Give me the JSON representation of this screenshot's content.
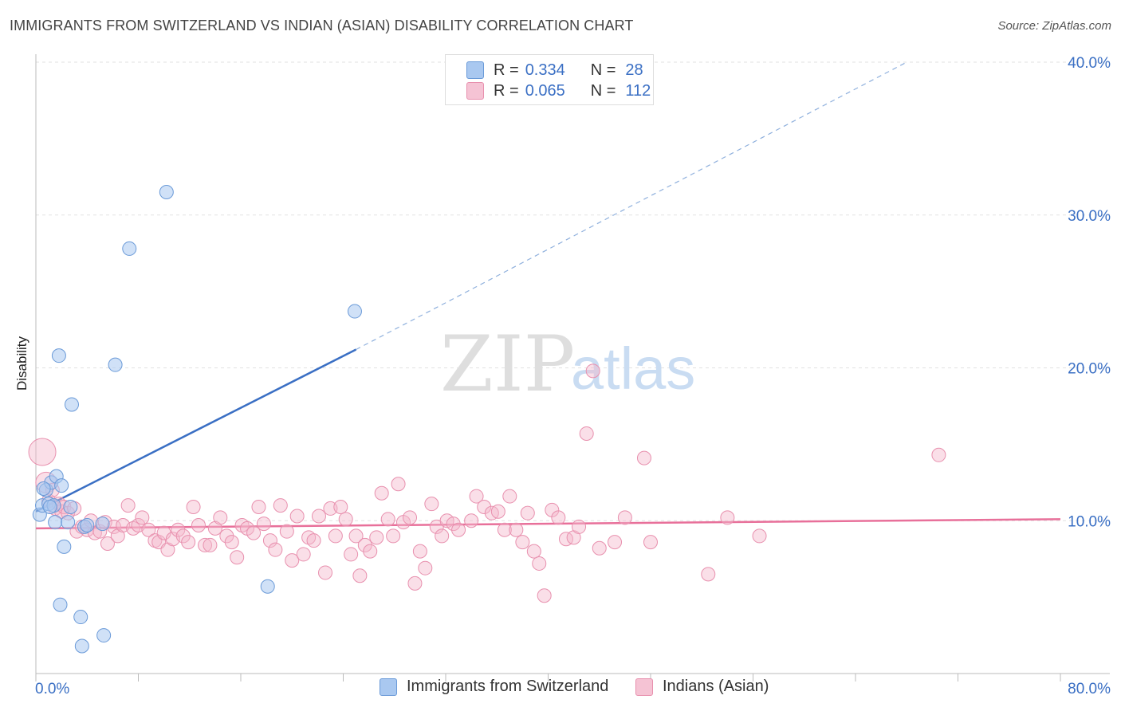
{
  "header": {
    "title": "IMMIGRANTS FROM SWITZERLAND VS INDIAN (ASIAN) DISABILITY CORRELATION CHART",
    "source": "Source: ZipAtlas.com"
  },
  "legend": {
    "rows": [
      {
        "r_label": "R =",
        "r_value": "0.334",
        "n_label": "N =",
        "n_value": "28"
      },
      {
        "r_label": "R =",
        "r_value": "0.065",
        "n_label": "N =",
        "n_value": "112"
      }
    ]
  },
  "watermark": {
    "zip": "ZIP",
    "atlas": "atlas"
  },
  "colors": {
    "blue": "#3a6fc4",
    "blue_fill": "#a9c8f0",
    "pink": "#e8709a",
    "pink_fill": "#f5b8cc"
  },
  "chart_data": {
    "type": "scatter",
    "title": "IMMIGRANTS FROM SWITZERLAND VS INDIAN (ASIAN) DISABILITY CORRELATION CHART",
    "xlabel": "",
    "ylabel": "Disability",
    "xlim": [
      0,
      80
    ],
    "ylim": [
      0,
      40
    ],
    "x_tick_labels": [
      "0.0%",
      "80.0%"
    ],
    "y_ticks": [
      10,
      20,
      30,
      40
    ],
    "y_tick_labels": [
      "10.0%",
      "20.0%",
      "30.0%",
      "40.0%"
    ],
    "grid": "horizontal dashed",
    "legend_placement": "top-center",
    "series": [
      {
        "name": "Immigrants from Switzerland",
        "color": "#3a6fc4",
        "trend": {
          "x0": 0,
          "y0": 10.6,
          "x1": 25,
          "y1": 21.2,
          "dashed_to_x": 68,
          "dashed_to_y": 40
        },
        "points": [
          [
            0.3,
            10.4
          ],
          [
            0.5,
            11.0
          ],
          [
            0.8,
            12.0
          ],
          [
            1.0,
            11.1
          ],
          [
            1.2,
            12.5
          ],
          [
            1.4,
            11.0
          ],
          [
            1.5,
            9.9
          ],
          [
            1.6,
            12.9
          ],
          [
            2.0,
            12.3
          ],
          [
            1.8,
            20.8
          ],
          [
            2.2,
            8.3
          ],
          [
            2.5,
            9.9
          ],
          [
            2.7,
            10.9
          ],
          [
            2.8,
            17.6
          ],
          [
            1.9,
            4.5
          ],
          [
            3.5,
            3.7
          ],
          [
            3.6,
            1.8
          ],
          [
            3.8,
            9.6
          ],
          [
            4.0,
            9.7
          ],
          [
            5.2,
            9.8
          ],
          [
            5.3,
            2.5
          ],
          [
            6.2,
            20.2
          ],
          [
            7.3,
            27.8
          ],
          [
            10.2,
            31.5
          ],
          [
            18.1,
            5.7
          ],
          [
            24.9,
            23.7
          ],
          [
            0.6,
            12.1
          ],
          [
            1.1,
            10.9
          ]
        ]
      },
      {
        "name": "Indians (Asian)",
        "color": "#e8709a",
        "trend": {
          "x0": 0,
          "y0": 9.5,
          "x1": 80,
          "y1": 10.1
        },
        "points": [
          [
            0.5,
            14.5
          ],
          [
            0.8,
            12.5
          ],
          [
            1.0,
            11.3
          ],
          [
            1.3,
            12.0
          ],
          [
            1.5,
            10.8
          ],
          [
            1.8,
            11.1
          ],
          [
            2.0,
            10.6
          ],
          [
            2.2,
            10.9
          ],
          [
            2.5,
            10.5
          ],
          [
            3.0,
            10.8
          ],
          [
            3.2,
            9.3
          ],
          [
            3.6,
            9.6
          ],
          [
            4.0,
            9.4
          ],
          [
            4.3,
            10.0
          ],
          [
            4.6,
            9.2
          ],
          [
            5.0,
            9.3
          ],
          [
            5.4,
            9.9
          ],
          [
            5.6,
            8.5
          ],
          [
            6.1,
            9.6
          ],
          [
            6.4,
            9.0
          ],
          [
            6.8,
            9.7
          ],
          [
            7.2,
            11.0
          ],
          [
            7.6,
            9.5
          ],
          [
            8.0,
            9.7
          ],
          [
            8.3,
            10.2
          ],
          [
            8.8,
            9.4
          ],
          [
            9.3,
            8.7
          ],
          [
            9.6,
            8.6
          ],
          [
            10.0,
            9.2
          ],
          [
            10.3,
            8.1
          ],
          [
            10.7,
            8.8
          ],
          [
            11.1,
            9.4
          ],
          [
            11.5,
            9.0
          ],
          [
            11.9,
            8.6
          ],
          [
            12.3,
            10.9
          ],
          [
            12.7,
            9.7
          ],
          [
            13.2,
            8.4
          ],
          [
            13.6,
            8.4
          ],
          [
            14.0,
            9.5
          ],
          [
            14.4,
            10.2
          ],
          [
            14.9,
            9.0
          ],
          [
            15.3,
            8.6
          ],
          [
            15.7,
            7.6
          ],
          [
            16.1,
            9.7
          ],
          [
            16.5,
            9.5
          ],
          [
            17.0,
            9.2
          ],
          [
            17.4,
            10.9
          ],
          [
            17.8,
            9.8
          ],
          [
            18.3,
            8.7
          ],
          [
            18.7,
            8.1
          ],
          [
            19.1,
            11.0
          ],
          [
            19.6,
            9.3
          ],
          [
            20.0,
            7.4
          ],
          [
            20.4,
            10.3
          ],
          [
            20.9,
            7.8
          ],
          [
            21.3,
            8.9
          ],
          [
            21.7,
            8.7
          ],
          [
            22.1,
            10.3
          ],
          [
            22.6,
            6.6
          ],
          [
            23.0,
            10.8
          ],
          [
            23.4,
            9.0
          ],
          [
            23.8,
            10.9
          ],
          [
            24.2,
            10.1
          ],
          [
            24.6,
            7.8
          ],
          [
            25.0,
            9.0
          ],
          [
            25.3,
            6.4
          ],
          [
            25.7,
            8.4
          ],
          [
            26.1,
            8.0
          ],
          [
            26.6,
            8.9
          ],
          [
            27.0,
            11.8
          ],
          [
            27.5,
            10.1
          ],
          [
            27.9,
            9.0
          ],
          [
            28.3,
            12.4
          ],
          [
            28.7,
            9.9
          ],
          [
            29.2,
            10.2
          ],
          [
            29.6,
            5.9
          ],
          [
            30.0,
            8.0
          ],
          [
            30.4,
            6.9
          ],
          [
            30.9,
            11.1
          ],
          [
            31.3,
            9.6
          ],
          [
            31.7,
            9.0
          ],
          [
            32.1,
            10.0
          ],
          [
            32.6,
            9.8
          ],
          [
            33.0,
            9.4
          ],
          [
            34.0,
            10.0
          ],
          [
            34.4,
            11.6
          ],
          [
            35.0,
            10.9
          ],
          [
            35.6,
            10.5
          ],
          [
            36.1,
            10.6
          ],
          [
            36.6,
            9.4
          ],
          [
            37.0,
            11.6
          ],
          [
            37.5,
            9.4
          ],
          [
            38.0,
            8.6
          ],
          [
            38.4,
            10.5
          ],
          [
            38.9,
            8.0
          ],
          [
            39.3,
            7.2
          ],
          [
            39.7,
            5.1
          ],
          [
            40.3,
            10.7
          ],
          [
            40.8,
            10.2
          ],
          [
            41.4,
            8.8
          ],
          [
            42.0,
            8.9
          ],
          [
            42.4,
            9.6
          ],
          [
            43.0,
            15.7
          ],
          [
            43.5,
            19.8
          ],
          [
            44.0,
            8.2
          ],
          [
            45.2,
            8.6
          ],
          [
            46.0,
            10.2
          ],
          [
            47.5,
            14.1
          ],
          [
            48.0,
            8.6
          ],
          [
            52.5,
            6.5
          ],
          [
            54.0,
            10.2
          ],
          [
            56.5,
            9.0
          ],
          [
            70.5,
            14.3
          ]
        ]
      }
    ]
  },
  "bottom_legend": {
    "items": [
      {
        "label": "Immigrants from Switzerland"
      },
      {
        "label": "Indians (Asian)"
      }
    ]
  }
}
